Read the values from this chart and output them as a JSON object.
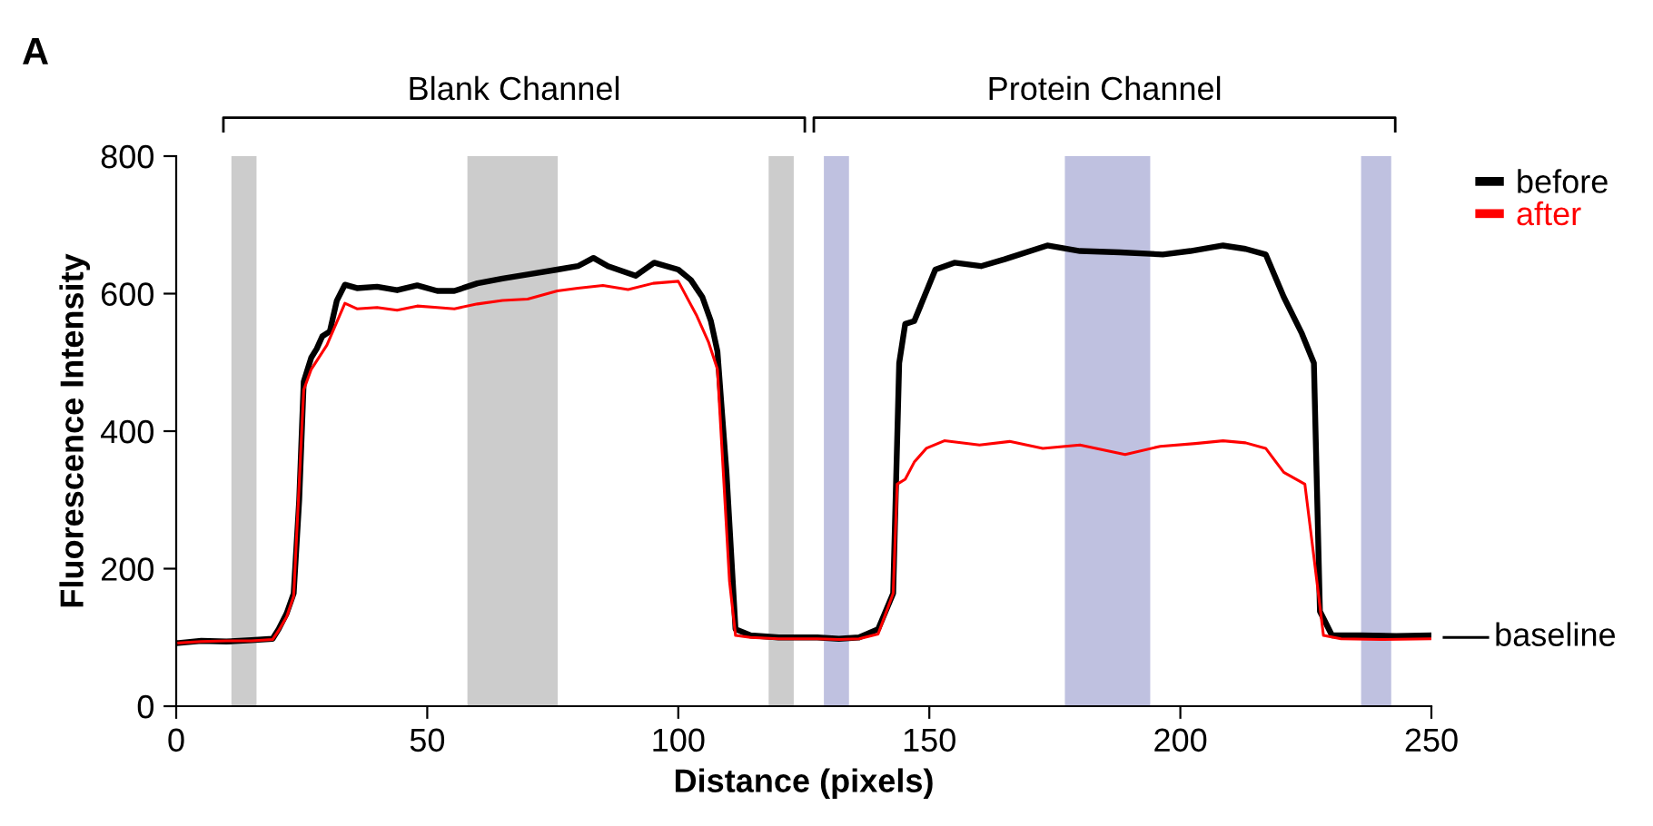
{
  "chart_data": {
    "type": "line",
    "xlabel": "Distance (pixels)",
    "ylabel": "Fluorescence Intensity",
    "annotations": [
      "A",
      "Blank Channel",
      "Protein Channel"
    ],
    "xlim": [
      0,
      250
    ],
    "ylim": [
      0,
      800
    ],
    "xticks": [
      0,
      50,
      100,
      150,
      200,
      250
    ],
    "yticks": [
      0,
      200,
      400,
      600,
      800
    ],
    "grid": false,
    "legend": "top right",
    "line_style": "solid",
    "marker": "none",
    "series": [
      {
        "name": "before",
        "color": "#000000",
        "x": [
          0.5,
          5,
          10,
          15,
          19.2,
          20.4,
          22,
          23.4,
          24.5,
          25.4,
          26.9,
          28,
          29.1,
          30.6,
          32,
          33.6,
          36,
          40,
          44,
          48,
          52,
          55.4,
          60,
          65,
          70,
          75.9,
          80,
          83.1,
          86,
          91.5,
          95.2,
          100,
          102.5,
          104.8,
          106.5,
          107.8,
          109.6,
          111.4,
          114.4,
          120,
          127.7,
          132,
          136,
          139.8,
          142.8,
          144,
          145.2,
          147,
          151.2,
          155,
          160.3,
          165,
          173.5,
          180,
          188,
          196.5,
          202,
          208.5,
          213,
          217,
          220.6,
          224.2,
          226.6,
          227.8,
          230.2,
          236,
          243,
          250
        ],
        "values": [
          92,
          95,
          94,
          96,
          98,
          112,
          135,
          164,
          300,
          472,
          507,
          520,
          538,
          545,
          590,
          613,
          608,
          610,
          605,
          612,
          604,
          604,
          615,
          622,
          628,
          635,
          640,
          652,
          640,
          626,
          645,
          635,
          620,
          595,
          560,
          516,
          340,
          112,
          103,
          100,
          100,
          98,
          100,
          112,
          164,
          499,
          556,
          560,
          635,
          645,
          640,
          650,
          670,
          662,
          660,
          657,
          662,
          670,
          665,
          657,
          595,
          542,
          499,
          138,
          103,
          103,
          102,
          103
        ]
      },
      {
        "name": "after",
        "color": "#ff0000",
        "x": [
          0.5,
          5,
          10,
          15,
          19.2,
          20.4,
          22,
          23.4,
          25.4,
          26.9,
          30,
          33.6,
          36,
          40,
          44,
          48,
          52,
          55.4,
          60,
          65,
          70,
          75.9,
          80,
          85,
          90,
          95,
          100,
          103.6,
          106,
          107.8,
          110.2,
          111.4,
          114.4,
          120,
          127.7,
          132,
          136,
          139.8,
          142.8,
          143.6,
          145.2,
          147,
          149.4,
          153,
          160,
          166,
          172.6,
          180,
          189,
          196,
          203,
          208.5,
          213,
          217,
          220.6,
          224.8,
          226.6,
          228.5,
          232,
          240,
          250
        ],
        "values": [
          92,
          94,
          95,
          95,
          97,
          110,
          130,
          160,
          460,
          490,
          525,
          586,
          578,
          580,
          576,
          582,
          580,
          578,
          585,
          590,
          592,
          604,
          608,
          612,
          606,
          615,
          618,
          569,
          530,
          490,
          182,
          103,
          100,
          98,
          98,
          97,
          98,
          105,
          164,
          323,
          330,
          355,
          375,
          386,
          380,
          385,
          375,
          380,
          366,
          378,
          382,
          386,
          383,
          375,
          340,
          323,
          217,
          103,
          98,
          97,
          98
        ]
      }
    ],
    "ref_lines": [
      {
        "axis": "y",
        "value": 100,
        "label": "baseline"
      }
    ],
    "bands": [
      {
        "axis": "x",
        "from": 11,
        "to": 16,
        "color": "#cccccc"
      },
      {
        "axis": "x",
        "from": 58,
        "to": 76,
        "color": "#cccccc"
      },
      {
        "axis": "x",
        "from": 118,
        "to": 123,
        "color": "#cccccc"
      },
      {
        "axis": "x",
        "from": 129,
        "to": 134,
        "color": "#bfc1e0"
      },
      {
        "axis": "x",
        "from": 177,
        "to": 194,
        "color": "#bfc1e0"
      },
      {
        "axis": "x",
        "from": 236,
        "to": 242,
        "color": "#bfc1e0"
      }
    ]
  }
}
